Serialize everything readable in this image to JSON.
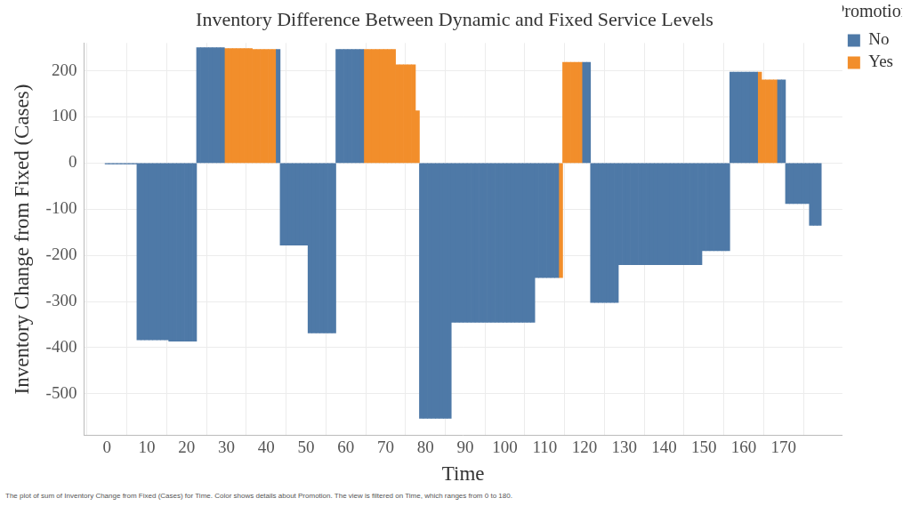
{
  "chart_data": {
    "type": "bar",
    "title": "Inventory Difference Between Dynamic and Fixed Service Levels",
    "x_label": "Time",
    "y_label": "Inventory Change from Fixed (Cases)",
    "legend_title": "Promotion",
    "caption": "The plot of sum of Inventory Change from Fixed (Cases) for Time.  Color shows details about Promotion. The view is filtered on Time, which ranges from 0 to 180.",
    "legend": "right",
    "grid": true,
    "xlim": [
      -0.5,
      179.5
    ],
    "xticks": [
      0,
      10,
      20,
      30,
      40,
      50,
      60,
      70,
      80,
      90,
      100,
      110,
      120,
      130,
      140,
      150,
      160,
      170
    ],
    "ylim": [
      -590,
      260
    ],
    "yticks": [
      -500,
      -400,
      -300,
      -200,
      -100,
      0,
      100,
      200
    ],
    "x": [
      0,
      1,
      2,
      3,
      4,
      5,
      6,
      7,
      8,
      9,
      10,
      11,
      12,
      13,
      14,
      15,
      16,
      17,
      18,
      19,
      20,
      21,
      22,
      23,
      24,
      25,
      26,
      27,
      28,
      29,
      30,
      31,
      32,
      33,
      34,
      35,
      36,
      37,
      38,
      39,
      40,
      41,
      42,
      43,
      44,
      45,
      46,
      47,
      48,
      49,
      50,
      51,
      52,
      53,
      54,
      55,
      56,
      57,
      58,
      59,
      60,
      61,
      62,
      63,
      64,
      65,
      66,
      67,
      68,
      69,
      70,
      71,
      72,
      73,
      74,
      75,
      76,
      77,
      78,
      79,
      80,
      81,
      82,
      83,
      84,
      85,
      86,
      87,
      88,
      89,
      90,
      91,
      92,
      93,
      94,
      95,
      96,
      97,
      98,
      99,
      100,
      101,
      102,
      103,
      104,
      105,
      106,
      107,
      108,
      109,
      110,
      111,
      112,
      113,
      114,
      115,
      116,
      117,
      118,
      119,
      120,
      121,
      122,
      123,
      124,
      125,
      126,
      127,
      128,
      129,
      130,
      131,
      132,
      133,
      134,
      135,
      136,
      137,
      138,
      139,
      140,
      141,
      142,
      143,
      144,
      145,
      146,
      147,
      148,
      149,
      150,
      151,
      152,
      153,
      154,
      155,
      156,
      157,
      158,
      159,
      160,
      161,
      162,
      163,
      164,
      165,
      166,
      167,
      168,
      169,
      170,
      171,
      172,
      173,
      174,
      175,
      176,
      177,
      178,
      179
    ],
    "series": [
      {
        "name": "No",
        "color": "#4e79a7",
        "values": [
          -2,
          -2,
          -2,
          -2,
          -2,
          -2,
          -2,
          -2,
          -383,
          -383,
          -383,
          -383,
          -383,
          -383,
          -383,
          -383,
          -386,
          -386,
          -386,
          -386,
          -386,
          -386,
          -386,
          250,
          250,
          250,
          250,
          250,
          250,
          250,
          null,
          null,
          null,
          null,
          null,
          null,
          null,
          null,
          null,
          null,
          null,
          null,
          null,
          246,
          -178,
          -178,
          -178,
          -178,
          -178,
          -178,
          -178,
          -368,
          -368,
          -368,
          -368,
          -368,
          -368,
          -368,
          246,
          246,
          246,
          246,
          246,
          246,
          246,
          null,
          null,
          null,
          null,
          null,
          null,
          null,
          null,
          null,
          null,
          null,
          null,
          null,
          null,
          -553,
          -553,
          -553,
          -553,
          -553,
          -553,
          -553,
          -553,
          -345,
          -345,
          -345,
          -345,
          -345,
          -345,
          -345,
          -345,
          -345,
          -345,
          -345,
          -345,
          -345,
          -345,
          -345,
          -345,
          -345,
          -345,
          -345,
          -345,
          -345,
          -248,
          -248,
          -248,
          -248,
          -248,
          -248,
          null,
          null,
          null,
          null,
          null,
          null,
          218,
          218,
          -302,
          -302,
          -302,
          -302,
          -302,
          -302,
          -302,
          -220,
          -220,
          -220,
          -220,
          -220,
          -220,
          -220,
          -220,
          -220,
          -220,
          -220,
          -220,
          -220,
          -220,
          -220,
          -220,
          -220,
          -220,
          -220,
          -220,
          -220,
          -190,
          -190,
          -190,
          -190,
          -190,
          -190,
          -190,
          197,
          197,
          197,
          197,
          197,
          197,
          197,
          null,
          null,
          null,
          null,
          null,
          180,
          180,
          -88,
          -88,
          -88,
          -88,
          -88,
          -88,
          -135,
          -135,
          -135
        ]
      },
      {
        "name": "Yes",
        "color": "#f28e2b",
        "values": [
          null,
          null,
          null,
          null,
          null,
          null,
          null,
          null,
          null,
          null,
          null,
          null,
          null,
          null,
          null,
          null,
          null,
          null,
          null,
          null,
          null,
          null,
          null,
          null,
          null,
          null,
          null,
          null,
          null,
          null,
          248,
          248,
          248,
          248,
          248,
          248,
          248,
          246,
          246,
          246,
          246,
          246,
          246,
          null,
          null,
          null,
          null,
          null,
          null,
          null,
          null,
          null,
          null,
          null,
          null,
          null,
          null,
          null,
          null,
          null,
          null,
          null,
          null,
          null,
          null,
          246,
          246,
          246,
          246,
          246,
          246,
          246,
          246,
          213,
          213,
          213,
          213,
          213,
          113,
          null,
          null,
          null,
          null,
          null,
          null,
          null,
          null,
          null,
          null,
          null,
          null,
          null,
          null,
          null,
          null,
          null,
          null,
          null,
          null,
          null,
          null,
          null,
          null,
          null,
          null,
          null,
          null,
          null,
          null,
          null,
          null,
          null,
          null,
          null,
          -248,
          218,
          218,
          218,
          218,
          218,
          null,
          null,
          null,
          null,
          null,
          null,
          null,
          null,
          null,
          null,
          null,
          null,
          null,
          null,
          null,
          null,
          null,
          null,
          null,
          null,
          null,
          null,
          null,
          null,
          null,
          null,
          null,
          null,
          null,
          null,
          null,
          null,
          null,
          null,
          null,
          null,
          null,
          null,
          null,
          null,
          null,
          null,
          null,
          null,
          197,
          180,
          180,
          180,
          180,
          null,
          null,
          null,
          null,
          null,
          null,
          null,
          null,
          null,
          null,
          null
        ]
      }
    ]
  }
}
